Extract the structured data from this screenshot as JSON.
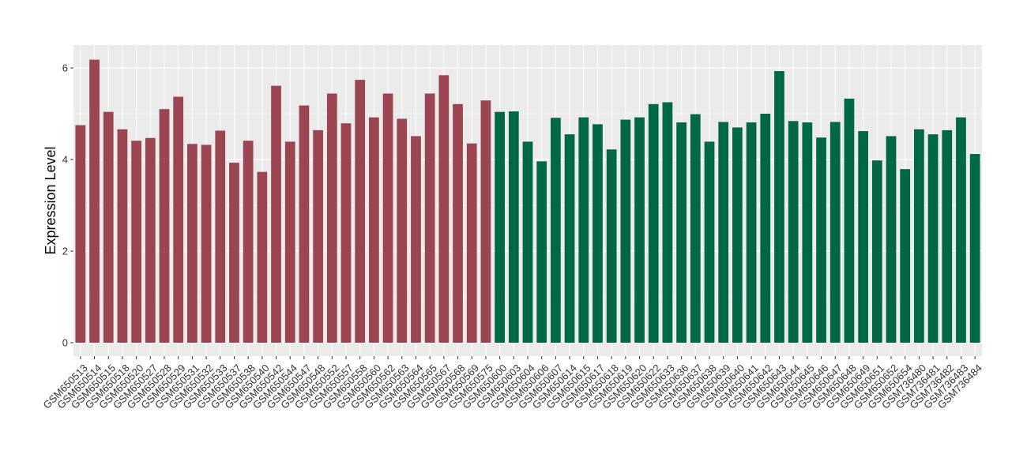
{
  "chart_data": {
    "type": "bar",
    "title": "",
    "xlabel": "",
    "ylabel": "Expression Level",
    "ylim": [
      0,
      6.5
    ],
    "yticks": [
      0,
      2,
      4,
      6
    ],
    "grid": true,
    "legend": "none",
    "colors": {
      "panel": "#EBEBEB",
      "gridline": "#FFFFFF",
      "group1": "#9B4452",
      "group2": "#006847"
    },
    "categories": [
      "GSM650513",
      "GSM650514",
      "GSM650515",
      "GSM650518",
      "GSM650520",
      "GSM650527",
      "GSM650528",
      "GSM650529",
      "GSM650531",
      "GSM650532",
      "GSM650533",
      "GSM650537",
      "GSM650538",
      "GSM650540",
      "GSM650542",
      "GSM650544",
      "GSM650547",
      "GSM650548",
      "GSM650552",
      "GSM650557",
      "GSM650558",
      "GSM650560",
      "GSM650562",
      "GSM650563",
      "GSM650564",
      "GSM650565",
      "GSM650567",
      "GSM650568",
      "GSM650569",
      "GSM650575",
      "GSM650600",
      "GSM650603",
      "GSM650604",
      "GSM650606",
      "GSM650607",
      "GSM650614",
      "GSM650615",
      "GSM650617",
      "GSM650618",
      "GSM650619",
      "GSM650620",
      "GSM650622",
      "GSM650633",
      "GSM650636",
      "GSM650637",
      "GSM650638",
      "GSM650639",
      "GSM650640",
      "GSM650641",
      "GSM650642",
      "GSM650643",
      "GSM650644",
      "GSM650645",
      "GSM650646",
      "GSM650647",
      "GSM650648",
      "GSM650649",
      "GSM650651",
      "GSM650652",
      "GSM650654",
      "GSM736480",
      "GSM736481",
      "GSM736482",
      "GSM736483",
      "GSM736484"
    ],
    "values": [
      4.75,
      6.18,
      5.04,
      4.66,
      4.41,
      4.47,
      5.1,
      5.37,
      4.34,
      4.32,
      4.63,
      3.93,
      4.41,
      3.73,
      5.61,
      4.39,
      5.18,
      4.64,
      5.44,
      4.79,
      5.74,
      4.92,
      5.44,
      4.89,
      4.51,
      5.44,
      5.84,
      5.21,
      4.35,
      5.29,
      5.04,
      5.05,
      4.39,
      3.96,
      4.91,
      4.55,
      4.92,
      4.77,
      4.22,
      4.87,
      4.92,
      5.21,
      5.25,
      4.81,
      4.99,
      4.39,
      4.82,
      4.7,
      4.81,
      5.0,
      5.93,
      4.84,
      4.81,
      4.48,
      4.82,
      5.33,
      4.62,
      3.98,
      4.51,
      3.79,
      4.66,
      4.55,
      4.64,
      4.92,
      4.12
    ],
    "groups": [
      1,
      1,
      1,
      1,
      1,
      1,
      1,
      1,
      1,
      1,
      1,
      1,
      1,
      1,
      1,
      1,
      1,
      1,
      1,
      1,
      1,
      1,
      1,
      1,
      1,
      1,
      1,
      1,
      1,
      1,
      2,
      2,
      2,
      2,
      2,
      2,
      2,
      2,
      2,
      2,
      2,
      2,
      2,
      2,
      2,
      2,
      2,
      2,
      2,
      2,
      2,
      2,
      2,
      2,
      2,
      2,
      2,
      2,
      2,
      2,
      2,
      2,
      2,
      2,
      2
    ]
  }
}
